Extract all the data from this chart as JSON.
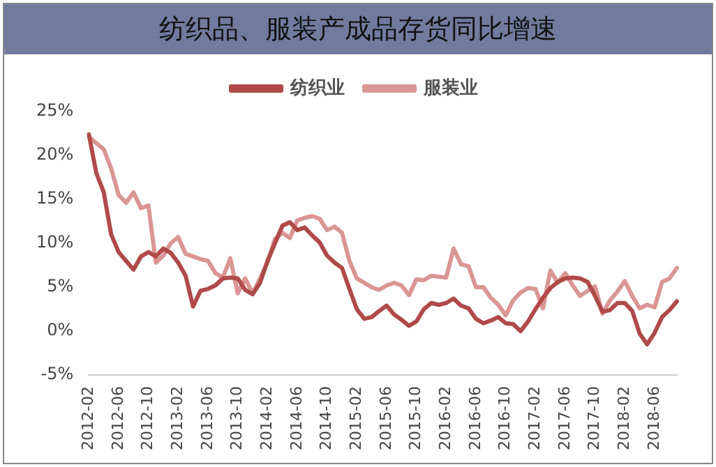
{
  "chart_data": {
    "type": "line",
    "title": "纺织品、服装产成品存货同比增速",
    "categories": [
      "2012-02",
      null,
      null,
      null,
      "2012-06",
      null,
      null,
      null,
      "2012-10",
      null,
      null,
      null,
      "2013-02",
      null,
      null,
      null,
      "2013-06",
      null,
      null,
      null,
      "2013-10",
      null,
      null,
      null,
      "2014-02",
      null,
      null,
      null,
      "2014-06",
      null,
      null,
      null,
      "2014-10",
      null,
      null,
      null,
      "2015-02",
      null,
      null,
      null,
      "2015-06",
      null,
      null,
      null,
      "2015-10",
      null,
      null,
      null,
      "2016-02",
      null,
      null,
      null,
      "2016-06",
      null,
      null,
      null,
      "2016-10",
      null,
      null,
      null,
      "2017-02",
      null,
      null,
      null,
      "2017-06",
      null,
      null,
      null,
      "2017-10",
      null,
      null,
      null,
      "2018-02",
      null,
      null,
      null,
      "2018-06",
      null,
      null,
      null
    ],
    "series": [
      {
        "name": "纺织业",
        "color": "#b04a4a",
        "values": [
          22.4,
          18,
          15.8,
          11,
          9,
          8,
          7,
          8.5,
          9,
          8.5,
          9.4,
          8.9,
          7.8,
          6.3,
          2.8,
          4.6,
          4.8,
          5.2,
          6,
          6.1,
          6,
          4.7,
          4.2,
          5.5,
          8,
          10,
          12,
          12.4,
          11.5,
          11.8,
          10.9,
          10.1,
          8.6,
          7.8,
          7.2,
          4.8,
          2.5,
          1.4,
          1.6,
          2.3,
          2.9,
          1.9,
          1.3,
          0.6,
          1.1,
          2.5,
          3.2,
          3,
          3.2,
          3.7,
          2.9,
          2.6,
          1.4,
          0.9,
          1.2,
          1.6,
          0.9,
          0.8,
          0,
          1.1,
          2.5,
          3.8,
          4.9,
          5.6,
          6,
          6.1,
          6,
          5.6,
          4,
          2.2,
          2.4,
          3.2,
          3.2,
          2.3,
          -0.3,
          -1.5,
          -0.2,
          1.6,
          2.4,
          3.4
        ]
      },
      {
        "name": "服装业",
        "color": "#d99694",
        "values": [
          22.1,
          21.4,
          20.7,
          18.5,
          15.5,
          14.6,
          15.8,
          14,
          14.3,
          7.8,
          8.6,
          10,
          10.7,
          8.8,
          8.5,
          8.2,
          8,
          6.6,
          6.1,
          8.3,
          4.3,
          6,
          4.3,
          6,
          7.8,
          10.5,
          11.2,
          10.6,
          12.6,
          12.9,
          13.1,
          12.8,
          11.5,
          11.9,
          11.2,
          8,
          6,
          5.5,
          5,
          4.7,
          5.2,
          5.5,
          5.2,
          4.1,
          5.9,
          5.8,
          6.3,
          6.2,
          6.1,
          9.4,
          7.6,
          7.4,
          5,
          5,
          3.8,
          3,
          1.8,
          3.5,
          4.4,
          4.9,
          4.8,
          2.6,
          6.9,
          5.5,
          6.6,
          5.2,
          4,
          4.6,
          5.1,
          2,
          3.5,
          4.5,
          5.7,
          4,
          2.6,
          3,
          2.7,
          5.6,
          6,
          7.2
        ]
      }
    ],
    "ylim": [
      -5,
      25
    ],
    "yticks": [
      {
        "value": -5,
        "label": "-5%"
      },
      {
        "value": 0,
        "label": "0%"
      },
      {
        "value": 5,
        "label": "5%"
      },
      {
        "value": 10,
        "label": "10%"
      },
      {
        "value": 15,
        "label": "15%"
      },
      {
        "value": 20,
        "label": "20%"
      },
      {
        "value": 25,
        "label": "25%"
      }
    ],
    "grid": false,
    "legend": "top",
    "marker": "none",
    "line_style": "solid"
  }
}
